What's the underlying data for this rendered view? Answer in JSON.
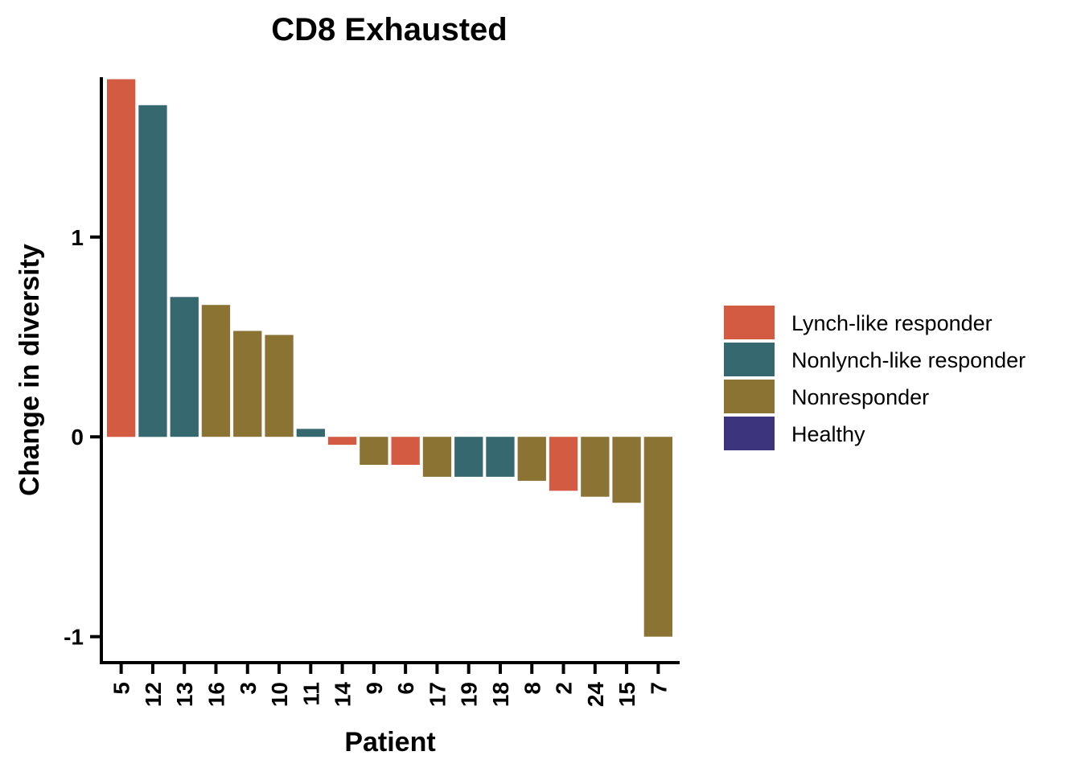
{
  "chart_data": {
    "type": "bar",
    "title": "CD8 Exhausted",
    "xlabel": "Patient",
    "ylabel": "Change in diversity",
    "ylim": [
      -1.13,
      1.8
    ],
    "yticks": [
      -1,
      0,
      1
    ],
    "ytick_labels": [
      "-1",
      "0",
      "1"
    ],
    "grid": false,
    "legend_position": "right",
    "categories": [
      "5",
      "12",
      "13",
      "16",
      "3",
      "10",
      "11",
      "14",
      "9",
      "6",
      "17",
      "19",
      "18",
      "8",
      "2",
      "24",
      "15",
      "7"
    ],
    "values": [
      1.79,
      1.66,
      0.7,
      0.66,
      0.53,
      0.51,
      0.04,
      -0.04,
      -0.14,
      -0.14,
      -0.2,
      -0.2,
      -0.2,
      -0.22,
      -0.27,
      -0.3,
      -0.33,
      -1.0
    ],
    "groups": [
      "Lynch-like responder",
      "Nonlynch-like responder",
      "Nonlynch-like responder",
      "Nonresponder",
      "Nonresponder",
      "Nonresponder",
      "Nonlynch-like responder",
      "Lynch-like responder",
      "Nonresponder",
      "Lynch-like responder",
      "Nonresponder",
      "Nonlynch-like responder",
      "Nonlynch-like responder",
      "Nonresponder",
      "Lynch-like responder",
      "Nonresponder",
      "Nonresponder",
      "Nonresponder"
    ],
    "legend": [
      {
        "name": "Lynch-like responder",
        "color": "#D35B41"
      },
      {
        "name": "Nonlynch-like responder",
        "color": "#366870"
      },
      {
        "name": "Nonresponder",
        "color": "#8B7334"
      },
      {
        "name": "Healthy",
        "color": "#3C347C"
      }
    ]
  }
}
